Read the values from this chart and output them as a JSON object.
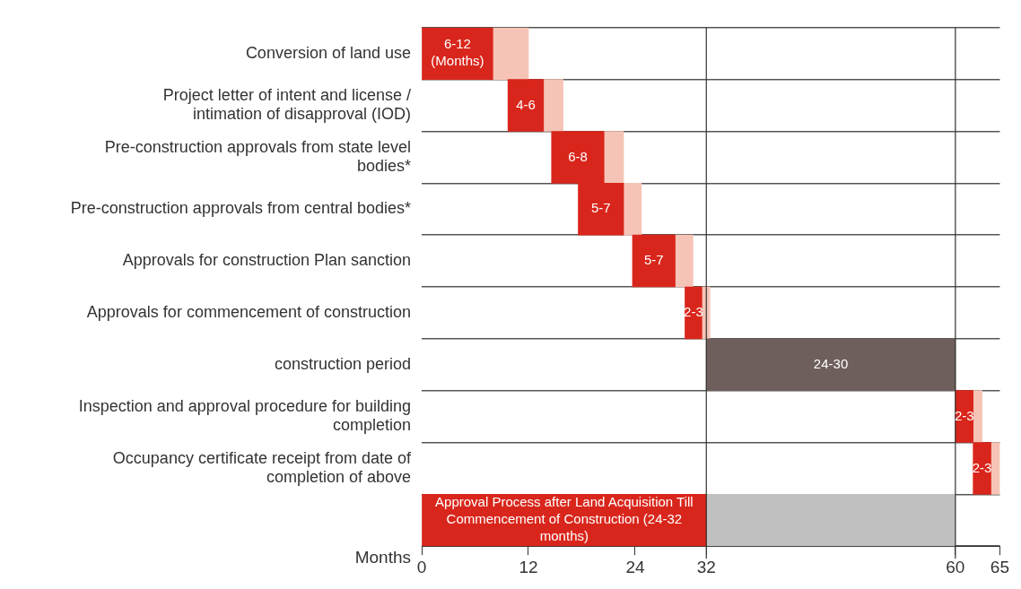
{
  "chart_data": {
    "type": "bar",
    "orientation": "horizontal",
    "xlabel": "Months",
    "categories": [
      "Conversion of land use",
      "Project letter of intent and license / intimation of disapproval (IOD)",
      "Pre-construction approvals from state level bodies*",
      "Pre-construction approvals from central bodies*",
      "Approvals for construction Plan sanction",
      "Approvals for commencement of construction",
      "construction period",
      "Inspection and approval procedure for building completion",
      "Occupancy certificate receipt from date of completion of above",
      null
    ],
    "series": [
      {
        "base": [
          0,
          9.7,
          14.6,
          17.6,
          23.7,
          29.6,
          32,
          60,
          62,
          0
        ],
        "values": [
          8,
          4,
          5.9,
          5.1,
          4.8,
          1.9,
          28,
          2,
          2,
          32
        ],
        "colors": [
          "#d9261c",
          "#d9261c",
          "#d9261c",
          "#d9261c",
          "#d9261c",
          "#d9261c",
          "#6e5f5c",
          "#d9261c",
          "#d9261c",
          "#d9261c"
        ],
        "value_labels": [
          "6-12 (Months)",
          "4-6",
          "6-8",
          "5-7",
          "5-7",
          "2-3",
          "24-30",
          "2-3",
          "2-3",
          "Approval Process after Land Acquisition Till Commencement of Construction (24-32 months)"
        ]
      },
      {
        "base": [
          8,
          13.7,
          20.5,
          22.7,
          28.5,
          31.5,
          null,
          62,
          64,
          32
        ],
        "values": [
          4,
          2.2,
          2.2,
          2,
          2,
          0.9,
          null,
          1,
          1,
          28
        ],
        "colors": [
          "#f6c4b6",
          "#f6c4b6",
          "#f6c4b6",
          "#f6c4b6",
          "#f6c4b6",
          "#f6c4b6",
          "#f6c4b6",
          "#f6c4b6",
          "#f6c4b6",
          "#c0c0c0"
        ]
      }
    ],
    "xlim": [
      0,
      65
    ],
    "xticks": [
      0,
      12,
      24,
      32,
      60,
      65
    ],
    "ref_lines": [
      {
        "axis": "x",
        "value": 32,
        "color": "#333333"
      },
      {
        "axis": "x",
        "value": 60,
        "color": "#333333"
      }
    ],
    "grid": "y"
  }
}
